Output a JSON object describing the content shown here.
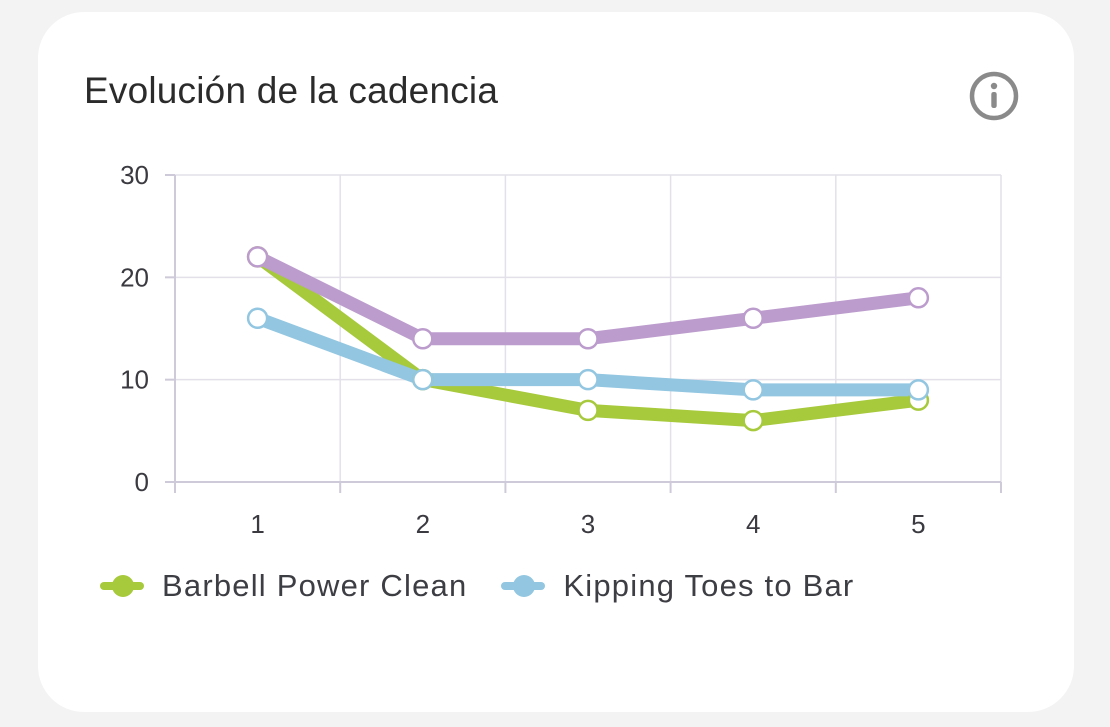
{
  "card": {
    "title": "Evolución de la cadencia",
    "info_icon": "info-circle-icon"
  },
  "colors": {
    "grid": "#e3e0ea",
    "axis": "#cfcad9",
    "text": "#3a3a40",
    "point_fill": "#ffffff"
  },
  "chart_data": {
    "type": "line",
    "title": "Evolución de la cadencia",
    "xlabel": "",
    "ylabel": "",
    "x": [
      1,
      2,
      3,
      4,
      5
    ],
    "ylim": [
      0,
      30
    ],
    "yticks": [
      0,
      10,
      20,
      30
    ],
    "grid": true,
    "legend_position": "bottom",
    "series": [
      {
        "name": "Barbell Power Clean",
        "color": "#a7c93c",
        "values": [
          22,
          10,
          7,
          6,
          8
        ],
        "in_legend": true
      },
      {
        "name": "Kipping Toes to Bar",
        "color": "#92c6e1",
        "values": [
          16,
          10,
          10,
          9,
          9
        ],
        "in_legend": true
      },
      {
        "name": "",
        "color": "#bc9ccd",
        "values": [
          22,
          14,
          14,
          16,
          18
        ],
        "in_legend": false
      }
    ]
  }
}
